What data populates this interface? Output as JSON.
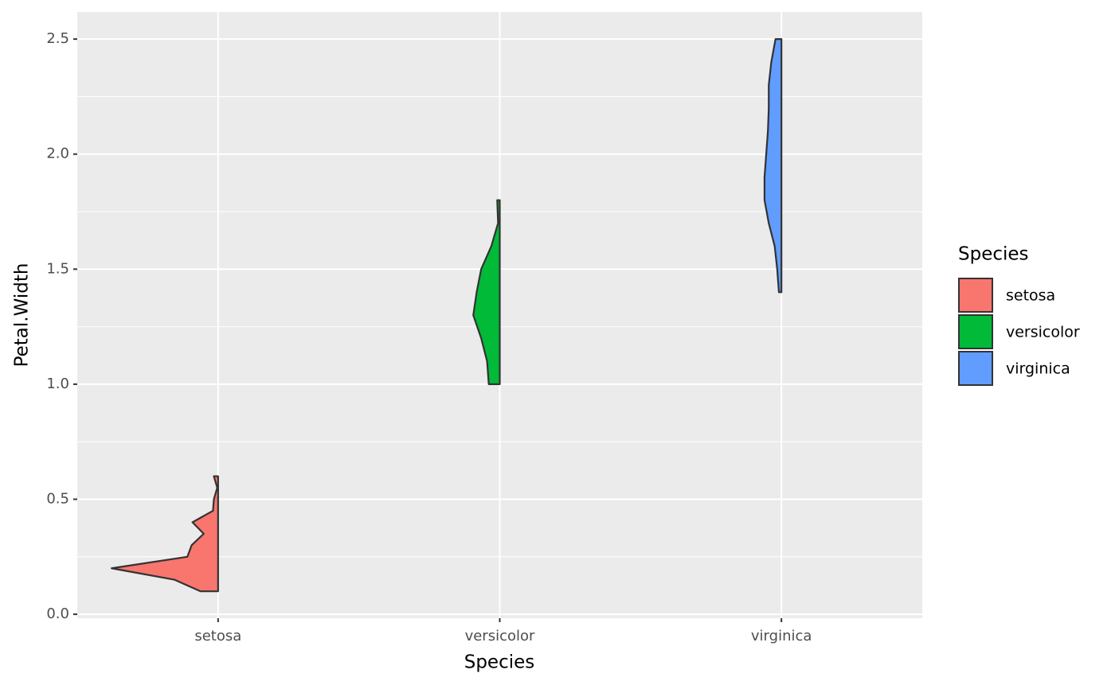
{
  "chart_data": {
    "type": "half-violin",
    "x_label": "Species",
    "y_label": "Petal.Width",
    "categories": [
      "setosa",
      "versicolor",
      "virginica"
    ],
    "ylim": [
      -0.017,
      2.618
    ],
    "yticks": [
      {
        "value": 0,
        "label": "0.0"
      },
      0.5,
      {
        "value": 1,
        "label": "1.0"
      },
      1.5,
      {
        "value": 2,
        "label": "2.0"
      },
      2.5
    ],
    "yminor": [
      0.25,
      0.75,
      1.25,
      1.75,
      2.25
    ],
    "grid": true,
    "legend_title": "Species",
    "legend_position": "right",
    "series": [
      {
        "name": "setosa",
        "color": "#F8766D",
        "y": [
          0.1,
          0.15,
          0.2,
          0.25,
          0.3,
          0.35,
          0.4,
          0.45,
          0.5,
          0.55,
          0.6
        ],
        "width": [
          0.063,
          0.154,
          0.378,
          0.109,
          0.094,
          0.051,
          0.091,
          0.018,
          0.015,
          0.003,
          0.015
        ]
      },
      {
        "name": "versicolor",
        "color": "#00BA38",
        "y": [
          1.0,
          1.1,
          1.2,
          1.3,
          1.4,
          1.5,
          1.6,
          1.7,
          1.8
        ],
        "width": [
          0.039,
          0.045,
          0.066,
          0.094,
          0.082,
          0.066,
          0.03,
          0.006,
          0.009
        ]
      },
      {
        "name": "virginica",
        "color": "#619CFF",
        "y": [
          1.4,
          1.5,
          1.6,
          1.7,
          1.8,
          1.9,
          2.0,
          2.1,
          2.2,
          2.3,
          2.4,
          2.5
        ],
        "width": [
          0.009,
          0.015,
          0.024,
          0.045,
          0.06,
          0.06,
          0.054,
          0.048,
          0.045,
          0.045,
          0.036,
          0.021
        ]
      }
    ]
  }
}
